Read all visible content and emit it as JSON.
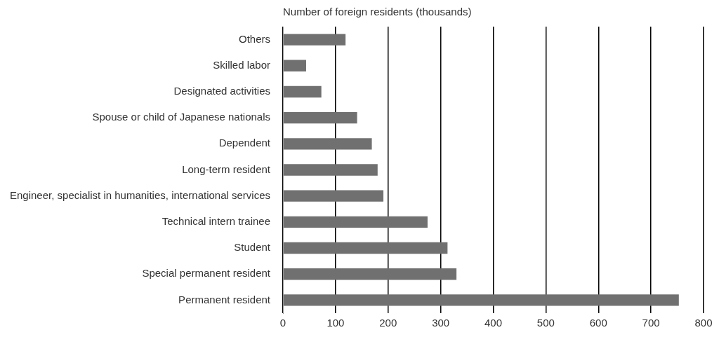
{
  "chart_data": {
    "type": "bar",
    "orientation": "horizontal",
    "title": "Number of foreign residents (thousands)",
    "categories": [
      "Others",
      "Skilled labor",
      "Designated activities",
      "Spouse or child of Japanese nationals",
      "Dependent",
      "Long-term resident",
      "Engineer, specialist in humanities, international services",
      "Technical intern trainee",
      "Student",
      "Special permanent resident",
      "Permanent resident"
    ],
    "values": [
      119,
      44,
      73,
      141,
      169,
      180,
      191,
      275,
      313,
      330,
      753
    ],
    "color": "#707070",
    "xlim": [
      0,
      800
    ],
    "xticks": [
      0,
      100,
      200,
      300,
      400,
      500,
      600,
      700,
      800
    ],
    "grid": true
  }
}
